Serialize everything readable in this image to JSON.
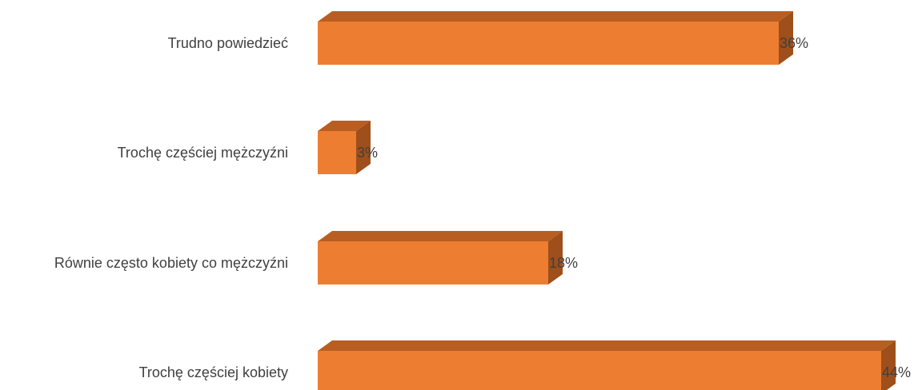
{
  "chart_data": {
    "type": "bar",
    "orientation": "horizontal",
    "three_d": true,
    "categories": [
      "Trudno powiedzieć",
      "Trochę częściej mężczyźni",
      "Równie często kobiety co mężczyźni",
      "Trochę częściej kobiety"
    ],
    "values": [
      36,
      3,
      18,
      44
    ],
    "value_labels": [
      "36%",
      "3%",
      "18%",
      "44%"
    ],
    "unit": "%",
    "xlim": [
      0,
      44
    ],
    "grid": false,
    "legend": "none",
    "colors": {
      "front": "#ED7D31",
      "top": "#B95E22",
      "side": "#9E4F1B",
      "label": "#404040"
    }
  }
}
